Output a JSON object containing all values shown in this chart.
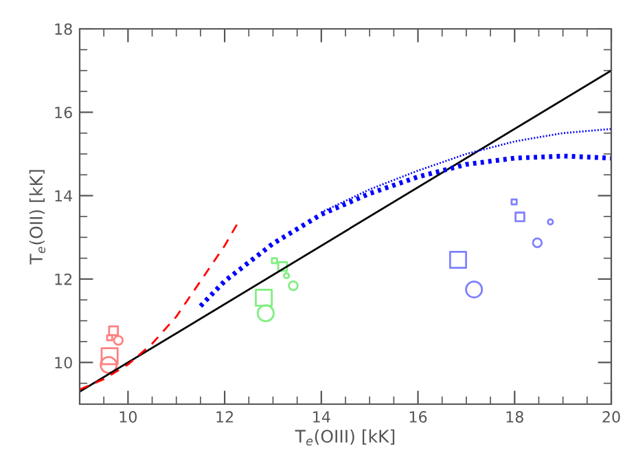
{
  "chart_data": {
    "type": "bubble",
    "xlabel": "T$_{e}$(OIII) [kK]",
    "ylabel": "T$_{e}$(OII) [kK]",
    "xlim": [
      9,
      20
    ],
    "ylim": [
      9,
      18
    ],
    "xticks": [
      10,
      12,
      14,
      16,
      18,
      20
    ],
    "yticks": [
      10,
      12,
      14,
      16,
      18
    ],
    "grid": false,
    "series": [
      {
        "type": "line",
        "color": "#000000",
        "line_style": "solid",
        "x": [
          9,
          20
        ],
        "values": [
          9.3,
          17
        ]
      },
      {
        "type": "line",
        "color": "#ff0000",
        "line_style": "dashed",
        "x": [
          9,
          9.5,
          10,
          10.5,
          11,
          11.5,
          12,
          12.3
        ],
        "values": [
          9.35,
          9.6,
          9.95,
          10.45,
          11.1,
          11.95,
          12.8,
          13.4
        ]
      },
      {
        "type": "line",
        "color": "#0000ff",
        "line_style": "dotted",
        "x": [
          11.5,
          12,
          13,
          14,
          15,
          16,
          17,
          18,
          19,
          20
        ],
        "values": [
          11.35,
          11.95,
          12.85,
          13.55,
          14.05,
          14.45,
          14.75,
          14.9,
          14.95,
          14.9
        ]
      },
      {
        "type": "line",
        "color": "#0000ff",
        "line_style": "dotted",
        "x": [
          14,
          15,
          16,
          17,
          18,
          19,
          20
        ],
        "values": [
          13.6,
          14.15,
          14.6,
          15.0,
          15.3,
          15.5,
          15.6
        ]
      },
      {
        "color": "#ff8080",
        "marker": "square",
        "x": [
          9.62,
          9.7,
          9.62
        ],
        "values": [
          10.15,
          10.76,
          10.59
        ],
        "sizes": [
          1,
          0.3,
          0.1
        ]
      },
      {
        "color": "#ff8080",
        "marker": "circle",
        "x": [
          9.6,
          9.8
        ],
        "values": [
          9.94,
          10.53
        ],
        "sizes": [
          1,
          0.3
        ]
      },
      {
        "color": "#80ee80",
        "marker": "square",
        "x": [
          12.81,
          13.2,
          13.03
        ],
        "values": [
          11.55,
          12.3,
          12.44
        ],
        "sizes": [
          1,
          0.3,
          0.1
        ]
      },
      {
        "color": "#80ee80",
        "marker": "circle",
        "x": [
          12.85,
          13.42,
          13.28
        ],
        "values": [
          11.18,
          11.84,
          12.08
        ],
        "sizes": [
          1,
          0.3,
          0.1
        ]
      },
      {
        "color": "#8080ff",
        "marker": "square",
        "x": [
          16.83,
          18.11,
          17.99
        ],
        "values": [
          12.46,
          13.49,
          13.85
        ],
        "sizes": [
          1,
          0.3,
          0.1
        ]
      },
      {
        "color": "#8080ff",
        "marker": "circle",
        "x": [
          17.16,
          18.47,
          18.74
        ],
        "values": [
          11.75,
          12.87,
          13.37
        ],
        "sizes": [
          1,
          0.3,
          0.1
        ]
      }
    ]
  }
}
